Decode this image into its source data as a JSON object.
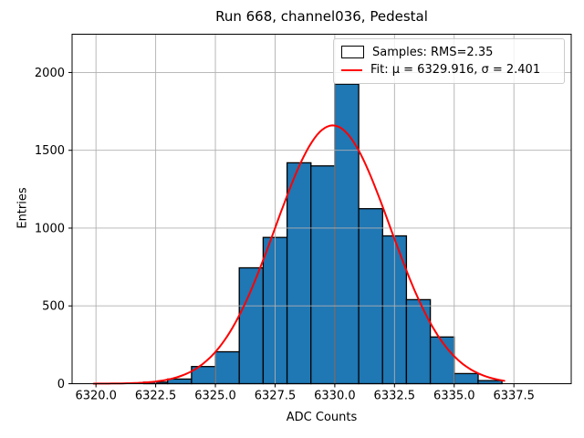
{
  "chart_data": {
    "type": "bar",
    "title": "Run 668, channel036, Pedestal",
    "xlabel": "ADC Counts",
    "ylabel": "Entries",
    "grid": true,
    "legend_position": "upper right",
    "legend": {
      "samples": "Samples: RMS=2.35",
      "fit": "Fit: μ = 6329.916, σ = 2.401"
    },
    "bin_edges": [
      6322,
      6323,
      6324,
      6325,
      6326,
      6327,
      6328,
      6329,
      6330,
      6331,
      6332,
      6333,
      6334,
      6335,
      6336,
      6337
    ],
    "counts": [
      10,
      30,
      110,
      205,
      745,
      940,
      1420,
      1400,
      1925,
      1125,
      950,
      540,
      300,
      65,
      20
    ],
    "fit": {
      "mu": 6329.916,
      "sigma": 2.401,
      "amplitude": 1660,
      "x_range": [
        6319.9,
        6337.1
      ]
    },
    "xlim": [
      6319.0,
      6339.9
    ],
    "ylim": [
      0,
      2246
    ],
    "xticks": [
      6320.0,
      6322.5,
      6325.0,
      6327.5,
      6330.0,
      6332.5,
      6335.0,
      6337.5
    ],
    "xtick_labels": [
      "6320.0",
      "6322.5",
      "6325.0",
      "6327.5",
      "6330.0",
      "6332.5",
      "6335.0",
      "6337.5"
    ],
    "yticks": [
      0,
      500,
      1000,
      1500,
      2000
    ],
    "ytick_labels": [
      "0",
      "500",
      "1000",
      "1500",
      "2000"
    ],
    "colors": {
      "bar_fill": "#1f77b4",
      "bar_edge": "#000000",
      "fit_line": "#ff0000",
      "grid": "#b0b0b0",
      "spine": "#000000",
      "background": "#ffffff"
    }
  }
}
